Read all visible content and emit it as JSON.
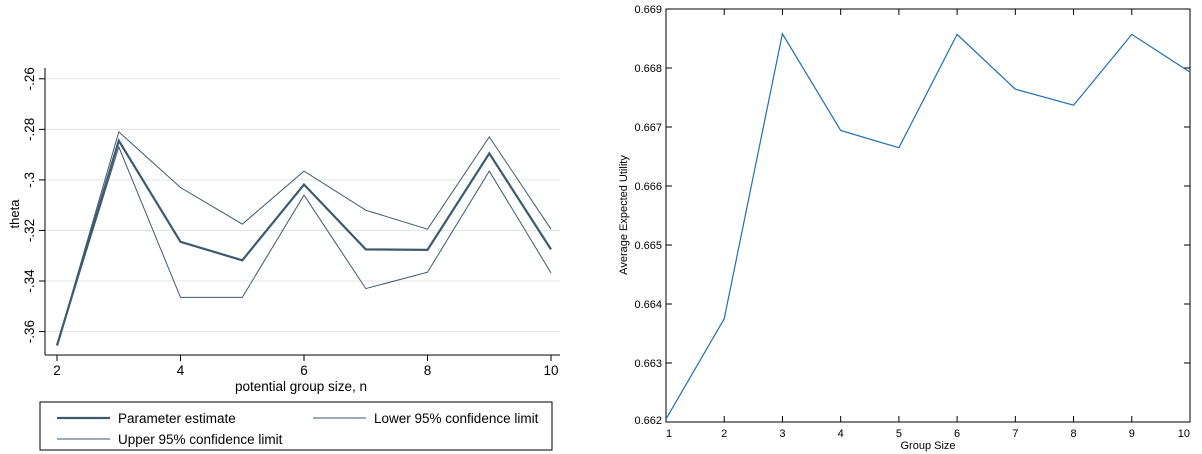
{
  "chart_data": [
    {
      "type": "line",
      "xlabel": "potential group size, n",
      "ylabel": "theta",
      "x": [
        2,
        3,
        4,
        5,
        6,
        7,
        8,
        9,
        10
      ],
      "xticks": [
        "2",
        "4",
        "6",
        "8",
        "10"
      ],
      "xtick_values": [
        2,
        4,
        6,
        8,
        10
      ],
      "yticks": [
        "-.36",
        "-.34",
        "-.32",
        "-.3",
        "-.28",
        "-.26"
      ],
      "ytick_values": [
        -0.36,
        -0.34,
        -0.32,
        -0.3,
        -0.28,
        -0.26
      ],
      "xlim": [
        2,
        10
      ],
      "ylim": [
        -0.3665,
        -0.2585
      ],
      "grid": true,
      "legend_position": "bottom",
      "series": [
        {
          "name": "Parameter estimate",
          "color": "#3d5a6e",
          "width": "thick",
          "values": [
            -0.3655,
            -0.2845,
            -0.3245,
            -0.3318,
            -0.3018,
            -0.3275,
            -0.3277,
            -0.2895,
            -0.3275
          ]
        },
        {
          "name": "Lower 95% confidence limit",
          "color": "#3d5a6e",
          "width": "thin",
          "values": [
            -0.3655,
            -0.287,
            -0.3465,
            -0.3465,
            -0.306,
            -0.343,
            -0.3365,
            -0.2965,
            -0.3368
          ]
        },
        {
          "name": "Upper 95% confidence limit",
          "color": "#3d5a6e",
          "width": "thin",
          "values": [
            -0.3655,
            -0.281,
            -0.303,
            -0.3175,
            -0.2965,
            -0.312,
            -0.3195,
            -0.283,
            -0.3195
          ]
        }
      ],
      "legend": [
        {
          "label": "Parameter estimate",
          "series": 0
        },
        {
          "label": "Lower 95% confidence limit",
          "series": 1
        },
        {
          "label": "Upper 95% confidence limit",
          "series": 2
        }
      ]
    },
    {
      "type": "line",
      "xlabel": "Group Size",
      "ylabel": "Average Expected Utility",
      "x": [
        1,
        2,
        3,
        4,
        5,
        6,
        7,
        8,
        9,
        10
      ],
      "xticks": [
        "1",
        "2",
        "3",
        "4",
        "5",
        "6",
        "7",
        "8",
        "9",
        "10"
      ],
      "xtick_values": [
        1,
        2,
        3,
        4,
        5,
        6,
        7,
        8,
        9,
        10
      ],
      "yticks": [
        "0.662",
        "0.663",
        "0.664",
        "0.665",
        "0.666",
        "0.667",
        "0.668",
        "0.669"
      ],
      "ytick_values": [
        0.662,
        0.663,
        0.664,
        0.665,
        0.666,
        0.667,
        0.668,
        0.669
      ],
      "xlim": [
        1,
        10
      ],
      "ylim": [
        0.662,
        0.669
      ],
      "grid": false,
      "series": [
        {
          "color": "#1f6fb0",
          "values": [
            0.66205,
            0.66375,
            0.66858,
            0.66694,
            0.66665,
            0.66857,
            0.66764,
            0.66737,
            0.66857,
            0.66793
          ]
        }
      ]
    }
  ]
}
